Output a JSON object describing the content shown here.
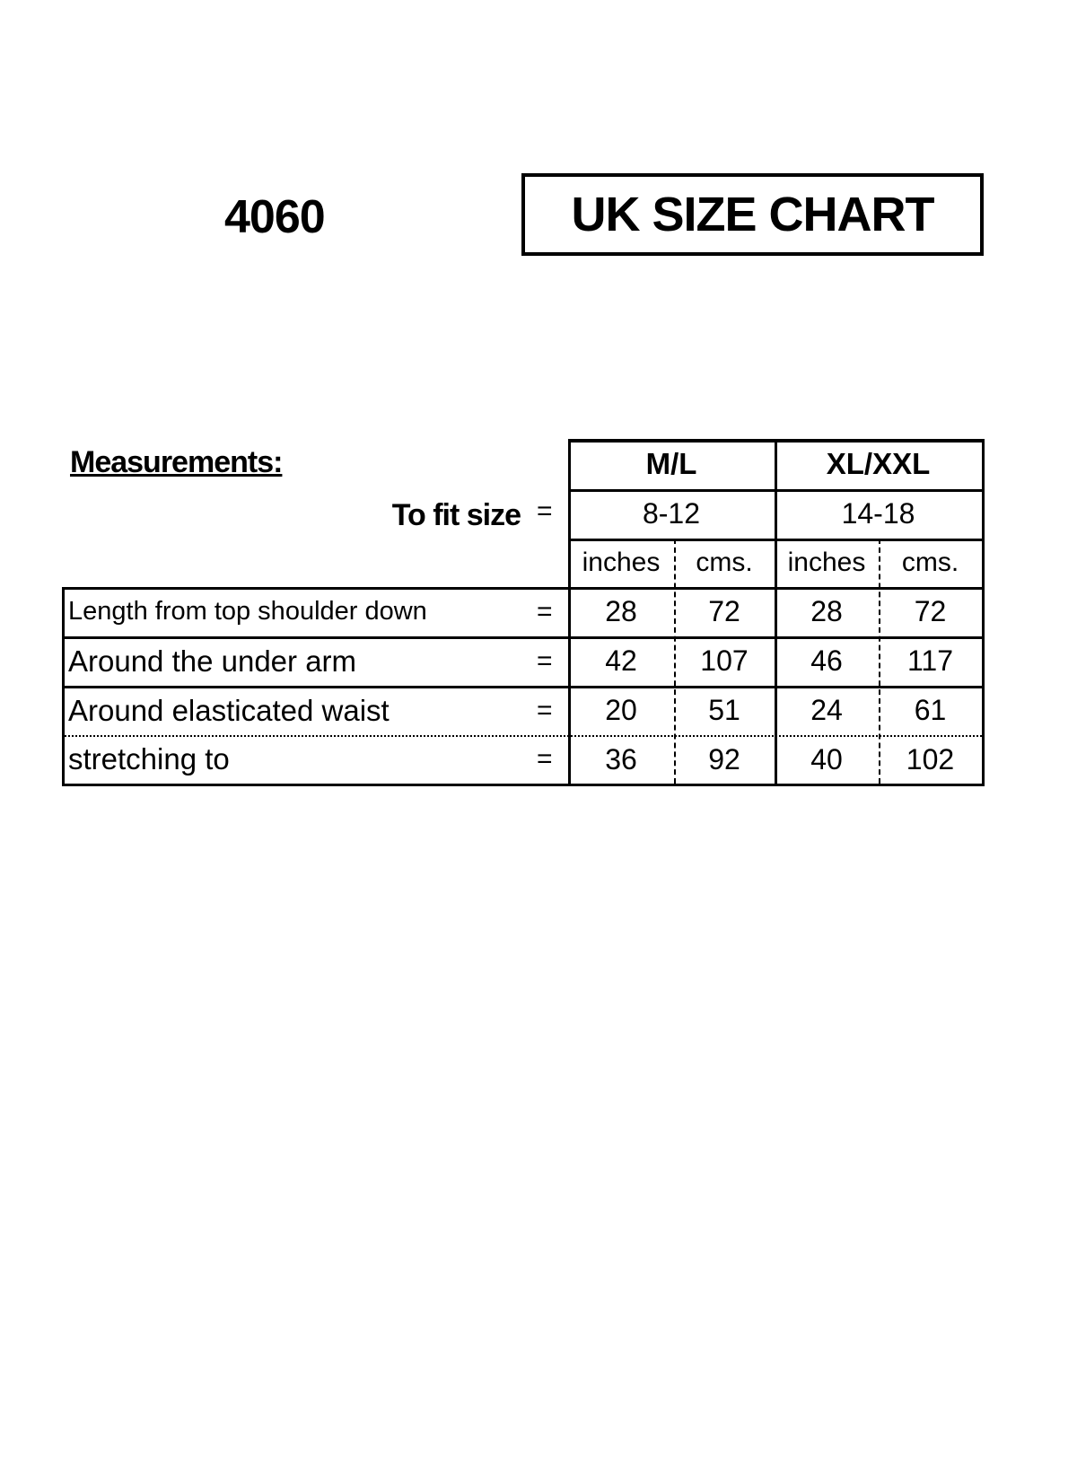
{
  "product_code": "4060",
  "title": "UK SIZE CHART",
  "measurements_label": "Measurements:",
  "fit_label": "To fit size",
  "equals": "=",
  "sizes": [
    {
      "name": "M/L",
      "fit": "8-12",
      "units": [
        "inches",
        "cms."
      ]
    },
    {
      "name": "XL/XXL",
      "fit": "14-18",
      "units": [
        "inches",
        "cms."
      ]
    }
  ],
  "rows": [
    {
      "label": "Length from top shoulder down",
      "values": [
        "28",
        "72",
        "28",
        "72"
      ]
    },
    {
      "label": "Around the under arm",
      "values": [
        "42",
        "107",
        "46",
        "117"
      ]
    },
    {
      "label": "Around elasticated waist",
      "values": [
        "20",
        "51",
        "24",
        "61"
      ]
    },
    {
      "label": "stretching to",
      "values": [
        "36",
        "92",
        "40",
        "102"
      ]
    }
  ]
}
